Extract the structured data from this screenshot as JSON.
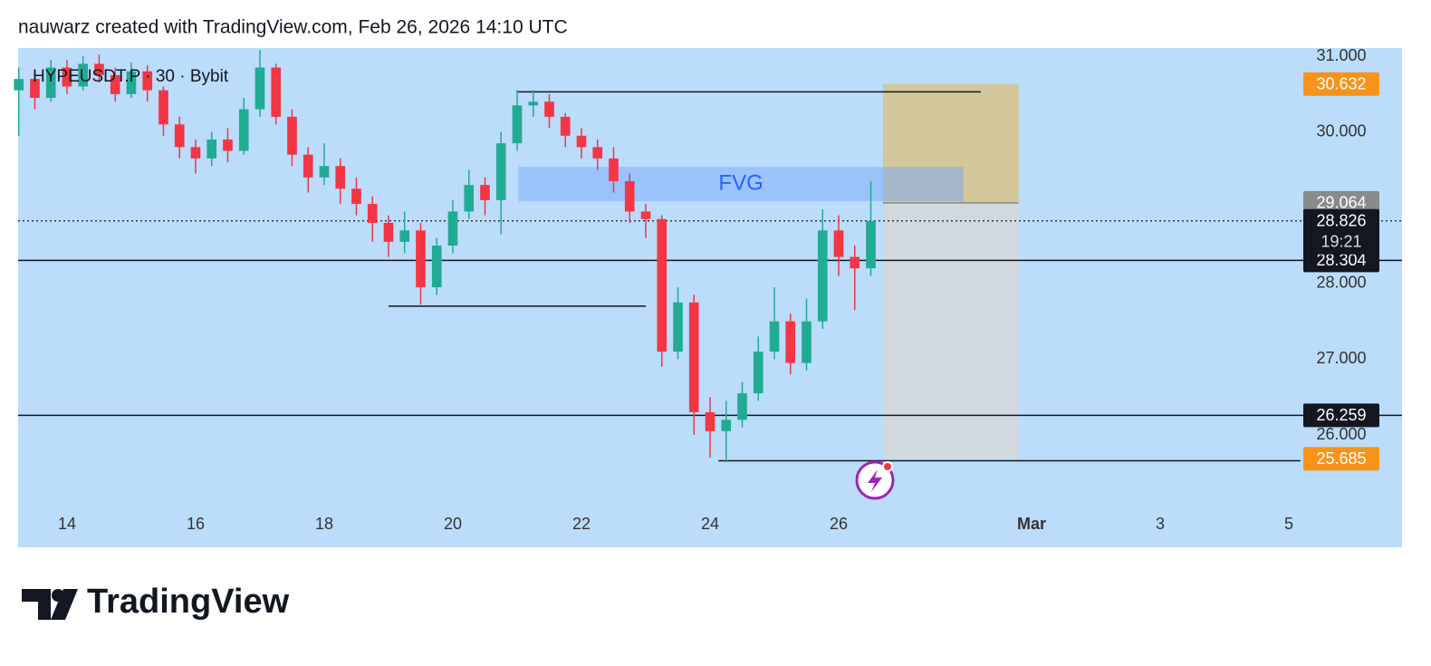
{
  "header": "nauwarz created with TradingView.com, Feb 26, 2026 14:10 UTC",
  "footer": {
    "brand": "TradingView"
  },
  "chart_data": {
    "type": "candlestick",
    "title": "HYPEUSDT.P · 30 · Bybit",
    "up_color": "#22ab94",
    "down_color": "#f23645",
    "x": [
      13.25,
      13.5,
      13.75,
      14,
      14.25,
      14.5,
      14.75,
      15,
      15.25,
      15.5,
      15.75,
      16,
      16.25,
      16.5,
      16.75,
      17,
      17.25,
      17.5,
      17.75,
      18,
      18.25,
      18.5,
      18.75,
      19,
      19.25,
      19.5,
      19.75,
      20,
      20.25,
      20.5,
      20.75,
      21,
      21.25,
      21.5,
      21.75,
      22,
      22.25,
      22.5,
      22.75,
      23,
      23.25,
      23.5,
      23.75,
      24,
      24.25,
      24.5,
      24.75,
      25,
      25.25,
      25.5,
      25.75,
      26,
      26.25,
      26.5
    ],
    "open": [
      30.55,
      30.7,
      30.45,
      30.85,
      30.6,
      30.9,
      30.75,
      30.5,
      30.8,
      30.55,
      30.1,
      29.8,
      29.65,
      29.9,
      29.75,
      30.3,
      30.85,
      30.2,
      29.7,
      29.4,
      29.55,
      29.25,
      29.05,
      28.8,
      28.55,
      28.7,
      27.95,
      28.5,
      28.95,
      29.3,
      29.1,
      29.85,
      30.35,
      30.4,
      30.2,
      29.95,
      29.8,
      29.65,
      29.35,
      28.95,
      28.85,
      27.1,
      27.75,
      26.3,
      26.05,
      26.2,
      26.55,
      27.1,
      27.5,
      26.95,
      27.5,
      28.7,
      28.35,
      28.2
    ],
    "high": [
      30.85,
      30.8,
      30.95,
      30.95,
      31.0,
      31.02,
      30.85,
      30.92,
      30.88,
      30.6,
      30.2,
      29.9,
      30.0,
      30.05,
      30.45,
      31.08,
      30.9,
      30.3,
      29.8,
      29.85,
      29.65,
      29.4,
      29.15,
      28.9,
      28.95,
      28.8,
      28.6,
      29.1,
      29.5,
      29.4,
      30.0,
      30.55,
      30.55,
      30.5,
      30.25,
      30.05,
      29.9,
      29.8,
      29.45,
      29.05,
      28.9,
      27.95,
      27.85,
      26.5,
      26.45,
      26.7,
      27.3,
      27.95,
      27.6,
      27.8,
      28.98,
      28.9,
      28.5,
      29.35
    ],
    "low": [
      29.95,
      30.3,
      30.4,
      30.5,
      30.55,
      30.65,
      30.4,
      30.45,
      30.4,
      29.95,
      29.65,
      29.45,
      29.55,
      29.6,
      29.7,
      30.2,
      30.1,
      29.55,
      29.2,
      29.3,
      29.05,
      28.9,
      28.55,
      28.35,
      28.4,
      27.72,
      27.85,
      28.4,
      28.85,
      28.9,
      28.65,
      29.75,
      30.2,
      30.05,
      29.8,
      29.65,
      29.5,
      29.2,
      28.8,
      28.6,
      26.9,
      27.0,
      26.0,
      25.7,
      25.64,
      26.1,
      26.45,
      27.0,
      26.8,
      26.85,
      27.4,
      28.1,
      27.65,
      28.1
    ],
    "close": [
      30.7,
      30.45,
      30.85,
      30.6,
      30.9,
      30.75,
      30.5,
      30.8,
      30.55,
      30.1,
      29.8,
      29.65,
      29.9,
      29.75,
      30.3,
      30.85,
      30.2,
      29.7,
      29.4,
      29.55,
      29.25,
      29.05,
      28.8,
      28.55,
      28.7,
      27.95,
      28.5,
      28.95,
      29.3,
      29.1,
      29.85,
      30.35,
      30.4,
      30.2,
      29.95,
      29.8,
      29.65,
      29.35,
      28.95,
      28.85,
      27.1,
      27.75,
      26.3,
      26.05,
      26.2,
      26.55,
      27.1,
      27.5,
      26.95,
      27.5,
      28.7,
      28.35,
      28.2,
      28.826
    ],
    "xlim": [
      13.24,
      34.76
    ],
    "xticks": [
      14,
      16,
      18,
      20,
      22,
      24,
      26,
      {
        "value": 29,
        "label": "Mar"
      },
      {
        "value": 31,
        "label": "3"
      },
      {
        "value": 33,
        "label": "5"
      }
    ],
    "ylim": [
      24.517,
      31.108
    ],
    "yticks": [
      {
        "value": 31,
        "label": "31.000"
      },
      {
        "value": 30,
        "label": "30.000"
      },
      {
        "value": 28,
        "label": "28.000"
      },
      {
        "value": 27,
        "label": "27.000"
      },
      {
        "value": 26,
        "label": "26.000"
      }
    ],
    "last_price": {
      "value": 28.826,
      "countdown": "19:21"
    },
    "levels": [
      28.304,
      26.259
    ],
    "segments": [
      {
        "value": 30.53,
        "x_start": 20.99,
        "x_end": 28.21
      },
      {
        "value": 27.7,
        "x_start": 19.0,
        "x_end": 23.0
      },
      {
        "value": 25.66,
        "x_start": 24.13,
        "x_end": 33.18
      }
    ],
    "fvg": {
      "label": "FVG",
      "top": 29.54,
      "bottom": 29.086,
      "x_start": 21.02,
      "x_end": 27.94
    },
    "position": {
      "stop": 30.632,
      "entry": 29.064,
      "target": 25.685,
      "x_start": 26.69,
      "x_end": 28.8
    }
  }
}
